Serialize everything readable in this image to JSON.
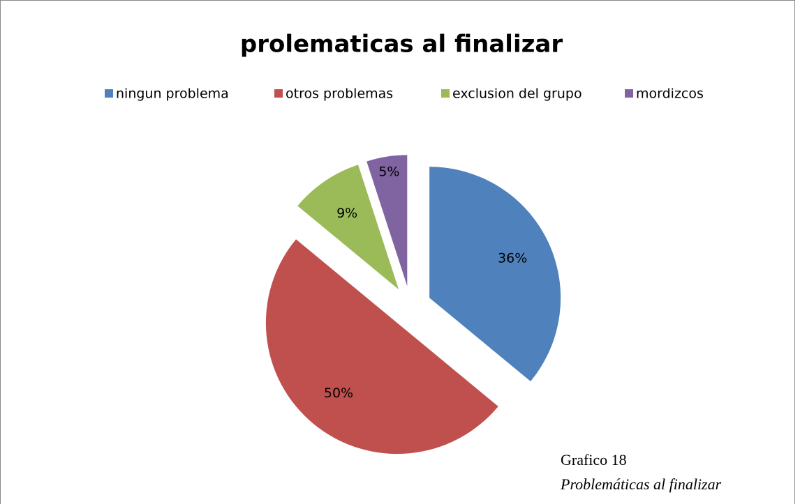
{
  "chart_data": {
    "type": "pie",
    "title": "prolematicas al finalizar",
    "categories": [
      "ningun problema",
      "otros problemas",
      "exclusion del grupo",
      "mordizcos"
    ],
    "values": [
      36,
      50,
      9,
      5
    ],
    "value_labels": [
      "36%",
      "50%",
      "9%",
      "5%"
    ],
    "colors": [
      "#4f81bd",
      "#c0504d",
      "#9bbb59",
      "#8064a2"
    ],
    "legend": "top"
  },
  "caption": {
    "number": "Grafico 18",
    "title": "Problemáticas al finalizar"
  }
}
